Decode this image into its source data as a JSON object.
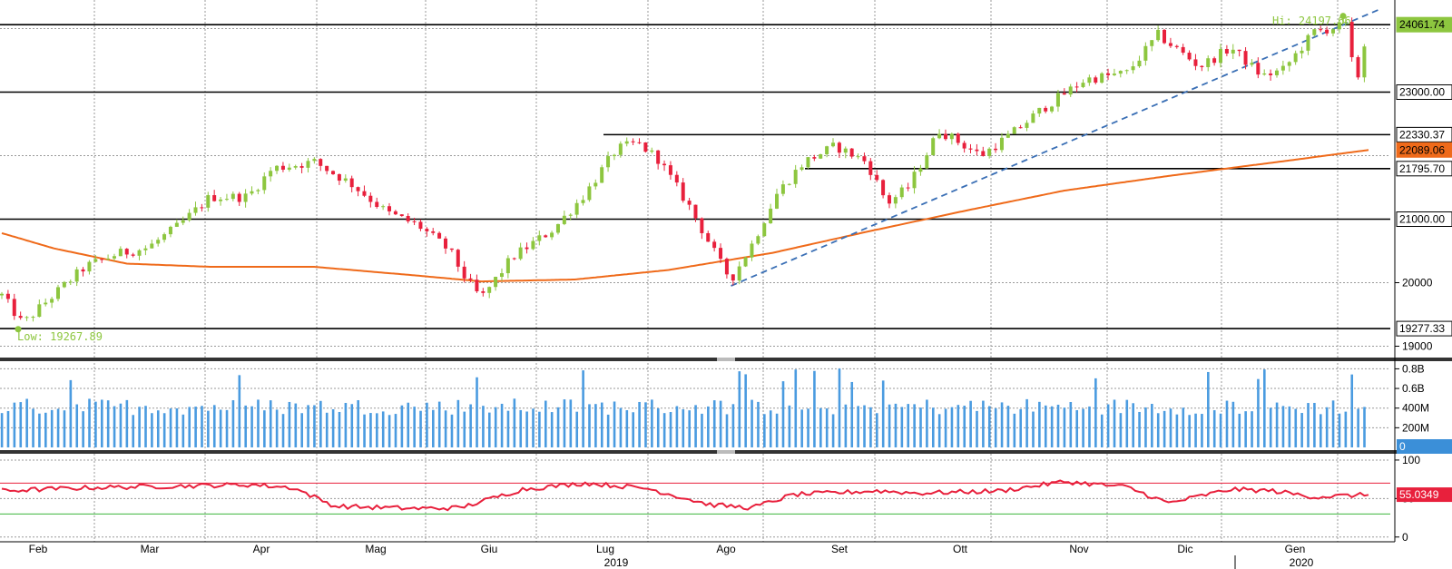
{
  "chart_data": [
    {
      "type": "candlestick",
      "xlabel": "",
      "ylabel": "",
      "ylim": [
        18850,
        24450
      ],
      "y_ticks": [
        "24061.74",
        "23000.00",
        "22330.37",
        "22089.06",
        "21795.70",
        "21000.00",
        "20000",
        "19277.33",
        "19000"
      ],
      "x_month_labels": [
        "Feb",
        "Mar",
        "Apr",
        "Mag",
        "Giu",
        "Lug",
        "Ago",
        "Set",
        "Ott",
        "Nov",
        "Dic",
        "Gen"
      ],
      "x_year_labels": [
        "2019",
        "2020"
      ],
      "annotations": {
        "high": {
          "label": "Hi: 24197.66",
          "value": 24197.66
        },
        "low": {
          "label": "Low: 19267.89",
          "value": 19267.89
        }
      },
      "horizontal_levels": [
        24061.74,
        23000.0,
        22330.37,
        21795.7,
        21000.0,
        19277.33
      ],
      "last_price_tag": {
        "value": "24061.74",
        "color": "#8dc63f"
      },
      "moving_average_tag": {
        "value": "22089.06",
        "color": "#ef6a1a"
      },
      "moving_average_anchors": [
        [
          0,
          20780
        ],
        [
          25,
          20540
        ],
        [
          60,
          20300
        ],
        [
          100,
          20250
        ],
        [
          150,
          20250
        ],
        [
          200,
          20110
        ],
        [
          230,
          20020
        ],
        [
          275,
          20050
        ],
        [
          320,
          20200
        ],
        [
          370,
          20470
        ],
        [
          415,
          20800
        ],
        [
          465,
          21150
        ],
        [
          510,
          21450
        ],
        [
          560,
          21680
        ],
        [
          610,
          21890
        ],
        [
          656,
          22089.06
        ]
      ],
      "price_anchors": [
        [
          0,
          19800
        ],
        [
          10,
          19350
        ],
        [
          18,
          19600
        ],
        [
          28,
          19900
        ],
        [
          40,
          20250
        ],
        [
          55,
          20450
        ],
        [
          70,
          20550
        ],
        [
          85,
          20900
        ],
        [
          100,
          21350
        ],
        [
          118,
          21350
        ],
        [
          130,
          21800
        ],
        [
          150,
          21900
        ],
        [
          168,
          21550
        ],
        [
          185,
          21100
        ],
        [
          200,
          20900
        ],
        [
          215,
          20500
        ],
        [
          222,
          20100
        ],
        [
          230,
          19750
        ],
        [
          245,
          20400
        ],
        [
          265,
          20850
        ],
        [
          280,
          21400
        ],
        [
          295,
          22100
        ],
        [
          305,
          22200
        ],
        [
          315,
          21950
        ],
        [
          330,
          21200
        ],
        [
          345,
          20300
        ],
        [
          350,
          20050
        ],
        [
          360,
          20600
        ],
        [
          372,
          21400
        ],
        [
          385,
          21900
        ],
        [
          400,
          22150
        ],
        [
          415,
          21900
        ],
        [
          425,
          21250
        ],
        [
          435,
          21500
        ],
        [
          450,
          22400
        ],
        [
          470,
          22000
        ],
        [
          485,
          22350
        ],
        [
          500,
          22750
        ],
        [
          520,
          23200
        ],
        [
          540,
          23300
        ],
        [
          555,
          23900
        ],
        [
          575,
          23400
        ],
        [
          590,
          23700
        ],
        [
          605,
          23250
        ],
        [
          615,
          23350
        ],
        [
          630,
          23950
        ],
        [
          645,
          24050
        ],
        [
          650,
          23100
        ],
        [
          656,
          24061.74
        ]
      ],
      "trendline_from": [
        350,
        19950
      ],
      "trendline_to": [
        656,
        24200
      ]
    },
    {
      "type": "bar",
      "ylabel": "",
      "y_ticks": [
        "0.8B",
        "0.6B",
        "400M",
        "200M",
        "0"
      ],
      "ylim": [
        0,
        850000000
      ],
      "color": "#4a9be0",
      "last_value_tag": {
        "value": "0",
        "color": "#3b8fd8"
      }
    },
    {
      "type": "line",
      "ylabel": "",
      "y_ticks": [
        "100",
        "50",
        "0"
      ],
      "ylim": [
        -5,
        107
      ],
      "overbought": 70,
      "oversold": 30,
      "line_color": "#e8203c",
      "last_value_tag": {
        "value": "55.0349",
        "color": "#e8203c"
      }
    }
  ]
}
